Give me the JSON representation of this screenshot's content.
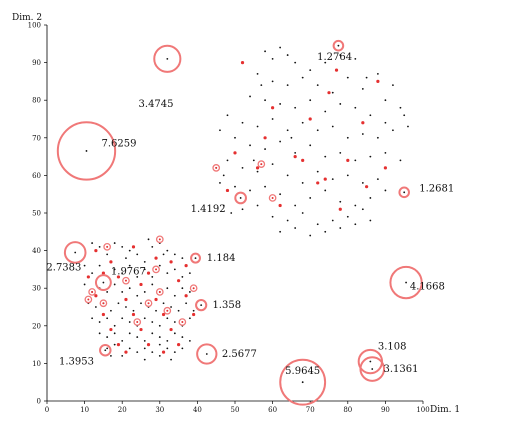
{
  "chart_data": {
    "type": "scatter",
    "xlabel": "Dim. 1",
    "ylabel": "Dim. 2",
    "xlim": [
      0,
      100
    ],
    "ylim": [
      0,
      100
    ],
    "x_ticks": [
      "0",
      "10",
      "20",
      "30",
      "40",
      "50",
      "60",
      "70",
      "80",
      "90",
      "100"
    ],
    "y_ticks": [
      "0",
      "10",
      "20",
      "30",
      "40",
      "50",
      "60",
      "70",
      "80",
      "90",
      "100"
    ],
    "colors": {
      "point": "#111111",
      "circle": "#f07878",
      "highlight": "#e53030"
    },
    "annotated_points": [
      {
        "x": 10.5,
        "y": 66.5,
        "label": "7.6259",
        "r": 7.6259
      },
      {
        "x": 32.0,
        "y": 91.0,
        "label": "3.4745",
        "r": 3.4745
      },
      {
        "x": 77.5,
        "y": 94.5,
        "label": "1.2764",
        "r": 1.2764
      },
      {
        "x": 95.0,
        "y": 55.5,
        "label": "1.2681",
        "r": 1.2681
      },
      {
        "x": 51.5,
        "y": 54.0,
        "label": "1.4192",
        "r": 1.4192
      },
      {
        "x": 7.5,
        "y": 39.5,
        "label": "2.7383",
        "r": 2.7383
      },
      {
        "x": 15.0,
        "y": 31.5,
        "label": "1.9767",
        "r": 1.9767
      },
      {
        "x": 39.5,
        "y": 38.0,
        "label": "1.184",
        "r": 1.184
      },
      {
        "x": 95.5,
        "y": 31.5,
        "label": "4.1668",
        "r": 4.1668
      },
      {
        "x": 41.0,
        "y": 25.5,
        "label": "1.358",
        "r": 1.358
      },
      {
        "x": 15.5,
        "y": 13.5,
        "label": "1.3953",
        "r": 1.3953
      },
      {
        "x": 42.5,
        "y": 12.5,
        "label": "2.5677",
        "r": 2.5677
      },
      {
        "x": 68.0,
        "y": 5.0,
        "label": "5.9645",
        "r": 5.9645
      },
      {
        "x": 86.0,
        "y": 10.5,
        "label": "3.108",
        "r": 3.108
      },
      {
        "x": 86.5,
        "y": 8.5,
        "label": "3.1361",
        "r": 3.1361
      }
    ],
    "points": [
      [
        58,
        93
      ],
      [
        62,
        94
      ],
      [
        64,
        92
      ],
      [
        66,
        90
      ],
      [
        60,
        91
      ],
      [
        70,
        88
      ],
      [
        74,
        90
      ],
      [
        78,
        92
      ],
      [
        82,
        91
      ],
      [
        88,
        87
      ],
      [
        92,
        84
      ],
      [
        56,
        87
      ],
      [
        60,
        85
      ],
      [
        64,
        84
      ],
      [
        68,
        86
      ],
      [
        72,
        84
      ],
      [
        76,
        82
      ],
      [
        80,
        86
      ],
      [
        84,
        83
      ],
      [
        90,
        80
      ],
      [
        94,
        78
      ],
      [
        54,
        81
      ],
      [
        58,
        80
      ],
      [
        62,
        79
      ],
      [
        66,
        78
      ],
      [
        70,
        80
      ],
      [
        74,
        77
      ],
      [
        78,
        79
      ],
      [
        82,
        78
      ],
      [
        86,
        76
      ],
      [
        90,
        74
      ],
      [
        95,
        76
      ],
      [
        52,
        74
      ],
      [
        56,
        73
      ],
      [
        60,
        75
      ],
      [
        64,
        72
      ],
      [
        68,
        74
      ],
      [
        72,
        72
      ],
      [
        76,
        73
      ],
      [
        80,
        70
      ],
      [
        84,
        71
      ],
      [
        88,
        70
      ],
      [
        92,
        72
      ],
      [
        96,
        73
      ],
      [
        46,
        72
      ],
      [
        48,
        76
      ],
      [
        50,
        70
      ],
      [
        54,
        68
      ],
      [
        58,
        67
      ],
      [
        62,
        69
      ],
      [
        66,
        66
      ],
      [
        70,
        68
      ],
      [
        74,
        65
      ],
      [
        78,
        66
      ],
      [
        82,
        64
      ],
      [
        86,
        65
      ],
      [
        90,
        66
      ],
      [
        94,
        64
      ],
      [
        48,
        64
      ],
      [
        52,
        62
      ],
      [
        56,
        61
      ],
      [
        60,
        63
      ],
      [
        64,
        60
      ],
      [
        68,
        58
      ],
      [
        72,
        61
      ],
      [
        76,
        59
      ],
      [
        80,
        60
      ],
      [
        84,
        58
      ],
      [
        88,
        59
      ],
      [
        46,
        58
      ],
      [
        50,
        57
      ],
      [
        54,
        56
      ],
      [
        58,
        57
      ],
      [
        62,
        55
      ],
      [
        66,
        52
      ],
      [
        70,
        54
      ],
      [
        74,
        56
      ],
      [
        78,
        53
      ],
      [
        82,
        52
      ],
      [
        86,
        54
      ],
      [
        90,
        56
      ],
      [
        47,
        52
      ],
      [
        49,
        50
      ],
      [
        52,
        51
      ],
      [
        56,
        52
      ],
      [
        60,
        49
      ],
      [
        64,
        48
      ],
      [
        68,
        50
      ],
      [
        72,
        47
      ],
      [
        76,
        48
      ],
      [
        80,
        49
      ],
      [
        84,
        51
      ],
      [
        86,
        48
      ],
      [
        62,
        45
      ],
      [
        66,
        46
      ],
      [
        70,
        44
      ],
      [
        74,
        45
      ],
      [
        78,
        46
      ],
      [
        82,
        47
      ],
      [
        45,
        62
      ],
      [
        47,
        60
      ],
      [
        55,
        64
      ],
      [
        65,
        70
      ],
      [
        85,
        86
      ],
      [
        57,
        84
      ],
      [
        12,
        42
      ],
      [
        14,
        41
      ],
      [
        16,
        39
      ],
      [
        18,
        42
      ],
      [
        20,
        41
      ],
      [
        22,
        40
      ],
      [
        24,
        39
      ],
      [
        26,
        37
      ],
      [
        28,
        41
      ],
      [
        30,
        42
      ],
      [
        32,
        40
      ],
      [
        34,
        39
      ],
      [
        36,
        38
      ],
      [
        10,
        36
      ],
      [
        12,
        34
      ],
      [
        14,
        36
      ],
      [
        18,
        35
      ],
      [
        20,
        34
      ],
      [
        22,
        36
      ],
      [
        24,
        33
      ],
      [
        26,
        35
      ],
      [
        28,
        33
      ],
      [
        30,
        36
      ],
      [
        32,
        34
      ],
      [
        34,
        35
      ],
      [
        36,
        33
      ],
      [
        38,
        34
      ],
      [
        10,
        31
      ],
      [
        12,
        29
      ],
      [
        14,
        30
      ],
      [
        16,
        29
      ],
      [
        18,
        31
      ],
      [
        20,
        29
      ],
      [
        22,
        30
      ],
      [
        24,
        28
      ],
      [
        26,
        29
      ],
      [
        28,
        31
      ],
      [
        30,
        29
      ],
      [
        32,
        30
      ],
      [
        34,
        28
      ],
      [
        36,
        30
      ],
      [
        38,
        29
      ],
      [
        11,
        26
      ],
      [
        13,
        25
      ],
      [
        15,
        26
      ],
      [
        17,
        24
      ],
      [
        19,
        26
      ],
      [
        21,
        25
      ],
      [
        23,
        24
      ],
      [
        25,
        26
      ],
      [
        27,
        25
      ],
      [
        29,
        24
      ],
      [
        31,
        26
      ],
      [
        33,
        25
      ],
      [
        35,
        24
      ],
      [
        37,
        26
      ],
      [
        39,
        24
      ],
      [
        12,
        22
      ],
      [
        14,
        21
      ],
      [
        16,
        22
      ],
      [
        18,
        20
      ],
      [
        20,
        22
      ],
      [
        22,
        21
      ],
      [
        24,
        20
      ],
      [
        26,
        22
      ],
      [
        28,
        21
      ],
      [
        30,
        20
      ],
      [
        32,
        22
      ],
      [
        34,
        21
      ],
      [
        36,
        20
      ],
      [
        38,
        22
      ],
      [
        14,
        18
      ],
      [
        16,
        17
      ],
      [
        18,
        18
      ],
      [
        20,
        16
      ],
      [
        22,
        18
      ],
      [
        24,
        17
      ],
      [
        26,
        16
      ],
      [
        28,
        18
      ],
      [
        30,
        17
      ],
      [
        32,
        16
      ],
      [
        34,
        18
      ],
      [
        36,
        17
      ],
      [
        38,
        16
      ],
      [
        16,
        14
      ],
      [
        18,
        15
      ],
      [
        22,
        14
      ],
      [
        24,
        13
      ],
      [
        26,
        14
      ],
      [
        28,
        13
      ],
      [
        30,
        15
      ],
      [
        32,
        14
      ],
      [
        34,
        13
      ],
      [
        36,
        14
      ],
      [
        20,
        12
      ],
      [
        26,
        11
      ],
      [
        30,
        12
      ],
      [
        33,
        11
      ],
      [
        17,
        12
      ],
      [
        21,
        38
      ],
      [
        27,
        43
      ],
      [
        31,
        39
      ]
    ],
    "highlight_points": [
      [
        77,
        88
      ],
      [
        88,
        85
      ],
      [
        52,
        90
      ],
      [
        60,
        78
      ],
      [
        70,
        75
      ],
      [
        84,
        74
      ],
      [
        66,
        65
      ],
      [
        80,
        64
      ],
      [
        56,
        62
      ],
      [
        74,
        59
      ],
      [
        90,
        62
      ],
      [
        62,
        52
      ],
      [
        78,
        51
      ],
      [
        48,
        56
      ],
      [
        72,
        58
      ],
      [
        85,
        57
      ],
      [
        58,
        70
      ],
      [
        50,
        66
      ],
      [
        75,
        82
      ],
      [
        68,
        64
      ],
      [
        13,
        40
      ],
      [
        17,
        37
      ],
      [
        23,
        41
      ],
      [
        29,
        38
      ],
      [
        33,
        37
      ],
      [
        11,
        33
      ],
      [
        19,
        33
      ],
      [
        27,
        34
      ],
      [
        35,
        32
      ],
      [
        13,
        28
      ],
      [
        21,
        27
      ],
      [
        29,
        27
      ],
      [
        37,
        28
      ],
      [
        15,
        23
      ],
      [
        23,
        23
      ],
      [
        31,
        23
      ],
      [
        39,
        23
      ],
      [
        17,
        19
      ],
      [
        25,
        19
      ],
      [
        33,
        19
      ],
      [
        19,
        15
      ],
      [
        27,
        15
      ],
      [
        35,
        15
      ],
      [
        21,
        13
      ],
      [
        31,
        13
      ],
      [
        25,
        31
      ],
      [
        15,
        34
      ],
      [
        37,
        36
      ]
    ],
    "ring_points": [
      [
        16,
        41
      ],
      [
        30,
        43
      ],
      [
        11,
        27
      ],
      [
        15,
        26
      ],
      [
        27,
        26
      ],
      [
        30,
        29
      ],
      [
        36,
        21
      ],
      [
        32,
        24
      ],
      [
        39,
        30
      ],
      [
        21,
        32
      ],
      [
        24,
        21
      ],
      [
        12,
        29
      ],
      [
        57,
        63
      ],
      [
        45,
        62
      ],
      [
        60,
        54
      ],
      [
        29,
        35
      ]
    ]
  }
}
